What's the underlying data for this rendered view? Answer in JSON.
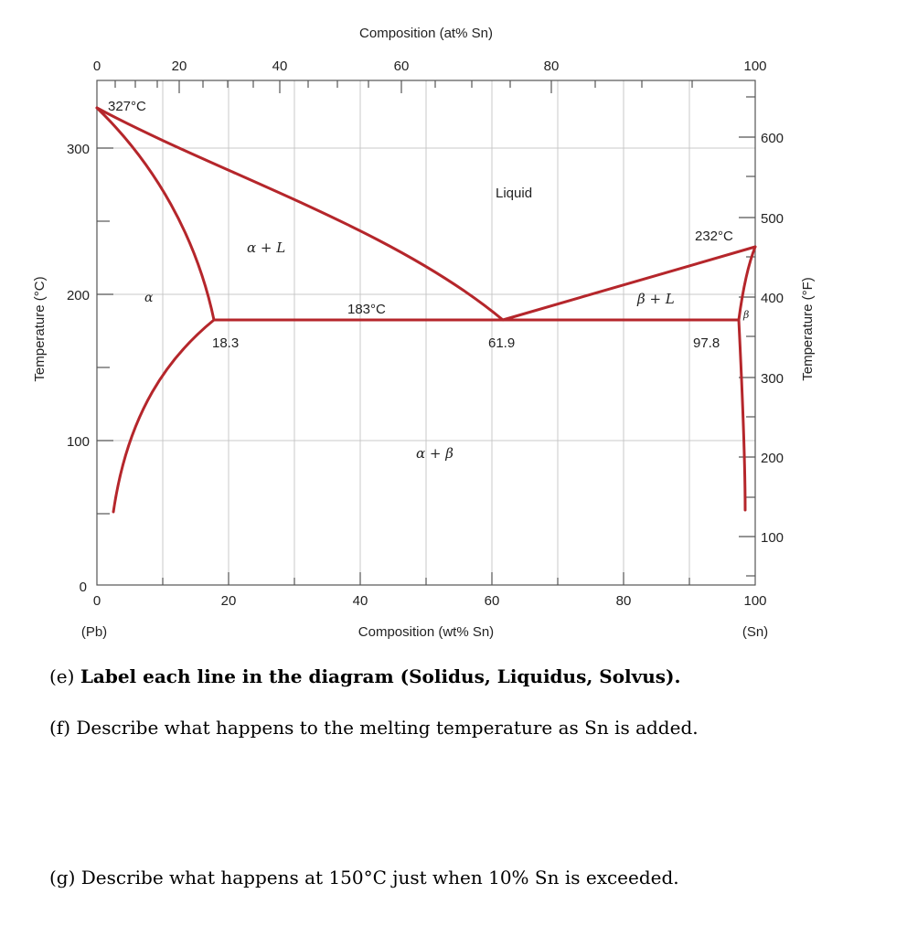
{
  "colors": {
    "curve": "#b5262b",
    "grid": "#c8c8c8",
    "axis": "#555555",
    "text": "#222222"
  },
  "diagram": {
    "top_axis_label": "Composition (at% Sn)",
    "top_ticks": [
      "0",
      "20",
      "40",
      "60",
      "80",
      "100"
    ],
    "bottom_axis_label": "Composition (wt% Sn)",
    "bottom_ticks": [
      "0",
      "20",
      "40",
      "60",
      "80",
      "100"
    ],
    "left_axis_label": "Temperature (°C)",
    "left_ticks": [
      "0",
      "100",
      "200",
      "300"
    ],
    "right_axis_label": "Temperature (°F)",
    "right_ticks": [
      "100",
      "200",
      "300",
      "400",
      "500",
      "600"
    ],
    "end_left": "(Pb)",
    "end_right": "(Sn)",
    "labels": {
      "pb_melt": "327°C",
      "sn_melt": "232°C",
      "eutectic_temp": "183°C",
      "alpha_limit": "18.3",
      "eutectic_comp": "61.9",
      "beta_limit": "97.8",
      "liquid": "Liquid",
      "alpha_liquid": "α + L",
      "beta_liquid": "β + L",
      "alpha_beta": "α + β",
      "alpha": "α",
      "beta": "β"
    }
  },
  "questions": {
    "e_prefix": "(e) ",
    "e_text": "Label each line in the diagram (Solidus, Liquidus, Solvus).",
    "f": "(f) Describe what happens to the melting temperature as Sn is added.",
    "g": "(g) Describe what happens at 150°C just when 10% Sn is exceeded."
  }
}
